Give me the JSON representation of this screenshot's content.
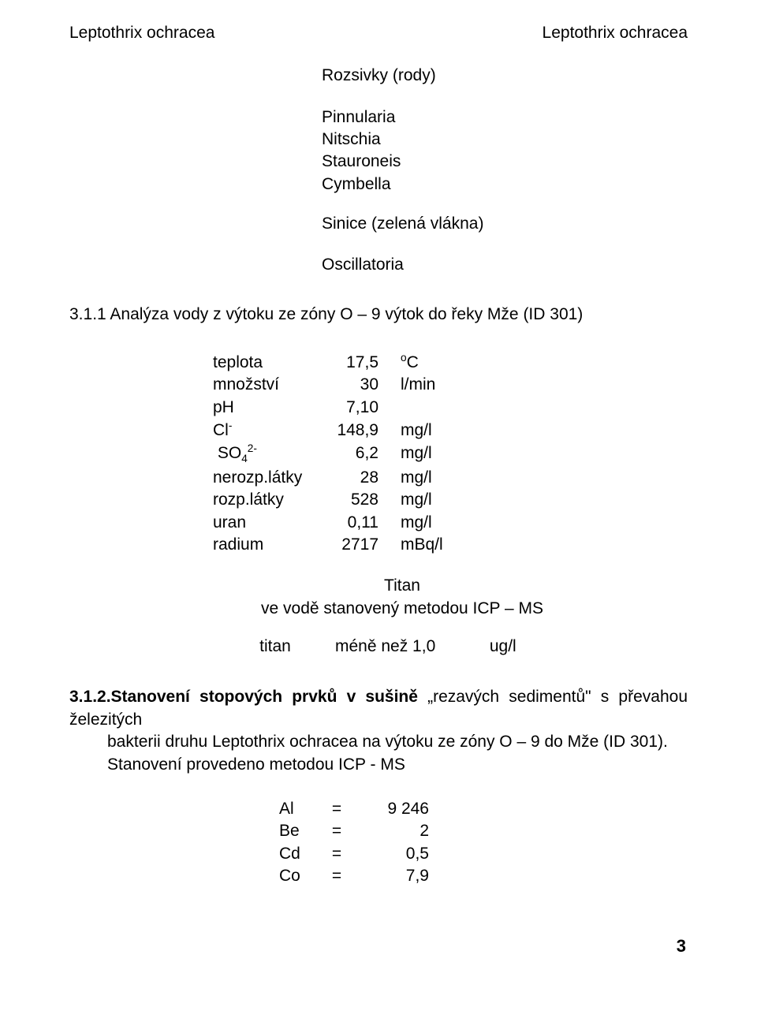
{
  "top": {
    "left": "Leptothrix ochracea",
    "right": "Leptothrix ochracea"
  },
  "groups": {
    "rozsivky_title": "Rozsivky (rody)",
    "rozsivky_items": [
      "Pinnularia",
      "Nitschia",
      "Stauroneis",
      "Cymbella"
    ],
    "sinice_title": "Sinice (zelená vlákna)",
    "sinice_items": [
      "Oscillatoria"
    ]
  },
  "section311": {
    "heading": "3.1.1 Analýza vody  z výtoku ze zóny O – 9 výtok do řeky Mže (ID 301)"
  },
  "table1": {
    "rows": [
      {
        "label_html": "teplota",
        "value": "17,5",
        "unit_html": "<span class='sup'>o</span>C"
      },
      {
        "label_html": "množství",
        "value": "30",
        "unit_html": "l/min"
      },
      {
        "label_html": "pH",
        "value": "7,10",
        "unit_html": ""
      },
      {
        "label_html": "Cl<span class='sup'>-</span>",
        "value": "148,9",
        "unit_html": "mg/l"
      },
      {
        "label_html": "&nbsp;SO<span class='sub'>4</span><span class='sup'>2-</span>",
        "value": "6,2",
        "unit_html": "mg/l"
      },
      {
        "label_html": "nerozp.látky",
        "value": "28",
        "unit_html": "mg/l"
      },
      {
        "label_html": "rozp.látky",
        "value": "528",
        "unit_html": "mg/l"
      },
      {
        "label_html": "uran",
        "value": "0,11",
        "unit_html": "mg/l"
      },
      {
        "label_html": "radium",
        "value": "2717",
        "unit_html": "mBq/l"
      }
    ]
  },
  "titan": {
    "line1": "Titan",
    "line2": "ve vodě stanovený metodou ICP – MS",
    "row": {
      "c1": "titan",
      "c2": "méně  než 1,0",
      "c3": "ug/l"
    }
  },
  "section312": {
    "lead_bold": "3.1.2.Stanovení stopových prvků v sušině",
    "lead_rest": " „rezavých sedimentů\" s převahou železitých",
    "line2": "bakterii druhu Leptothrix ochracea na výtoku ze zóny O – 9 do Mže (ID 301).",
    "line3": "Stanovení provedeno metodou ICP - MS"
  },
  "elements": {
    "rows": [
      {
        "sym": "Al",
        "val": "9 246"
      },
      {
        "sym": "Be",
        "val": "2"
      },
      {
        "sym": "Cd",
        "val": "0,5"
      },
      {
        "sym": "Co",
        "val": "7,9"
      }
    ]
  },
  "page_number": "3"
}
